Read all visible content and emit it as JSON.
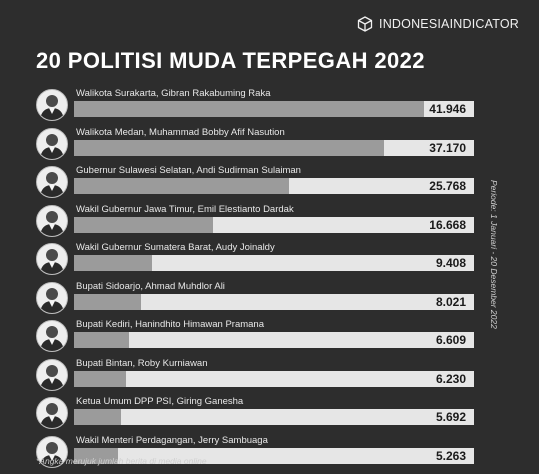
{
  "brand": {
    "name": "INDONESIAINDICATOR"
  },
  "header": {
    "title": "20 POLITISI MUDA TERPEGAH 2022"
  },
  "side_note": "Periode: 1 Januari - 20 Desember 2022",
  "footnote": "*Angka merujuk jumlah berita di media online",
  "colors": {
    "background": "#2d2d2d",
    "bar_fill": "#9b9b9b",
    "bar_track": "#e6e6e6"
  },
  "chart_data": {
    "type": "bar",
    "orientation": "horizontal",
    "title": "20 POLITISI MUDA TERPEGAH 2022",
    "xlim": [
      0,
      48000
    ],
    "categories": [
      "Walikota Surakarta, Gibran Rakabuming Raka",
      "Walikota Medan, Muhammad Bobby Afif Nasution",
      "Gubernur Sulawesi Selatan, Andi Sudirman Sulaiman",
      "Wakil Gubernur Jawa Timur, Emil Elestianto Dardak",
      "Wakil Gubernur Sumatera Barat, Audy Joinaldy",
      "Bupati Sidoarjo, Ahmad Muhdlor Ali",
      "Bupati Kediri, Hanindhito Himawan Pramana",
      "Bupati Bintan, Roby Kurniawan",
      "Ketua Umum DPP PSI, Giring Ganesha",
      "Wakil Menteri Perdagangan, Jerry Sambuaga"
    ],
    "values": [
      41946,
      37170,
      25768,
      16668,
      9408,
      8021,
      6609,
      6230,
      5692,
      5263
    ],
    "value_labels": [
      "41.946",
      "37.170",
      "25.768",
      "16.668",
      "9.408",
      "8.021",
      "6.609",
      "6.230",
      "5.692",
      "5.263"
    ]
  }
}
